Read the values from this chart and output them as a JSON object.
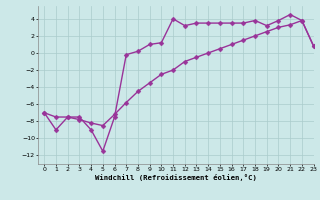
{
  "xlabel": "Windchill (Refroidissement éolien,°C)",
  "line1_x": [
    0,
    1,
    2,
    3,
    4,
    5,
    6,
    7,
    8,
    9,
    10,
    11,
    12,
    13,
    14,
    15,
    16,
    17,
    18,
    19,
    20,
    21,
    22,
    23
  ],
  "line1_y": [
    -7,
    -9,
    -7.5,
    -7.5,
    -9,
    -11.5,
    -7.5,
    -0.2,
    0.2,
    1.0,
    1.2,
    4.0,
    3.2,
    3.5,
    3.5,
    3.5,
    3.5,
    3.5,
    3.8,
    3.2,
    3.8,
    4.5,
    3.8,
    0.8
  ],
  "line2_x": [
    0,
    1,
    2,
    3,
    4,
    5,
    6,
    7,
    8,
    9,
    10,
    11,
    12,
    13,
    14,
    15,
    16,
    17,
    18,
    19,
    20,
    21,
    22,
    23
  ],
  "line2_y": [
    -7,
    -7.5,
    -7.5,
    -7.8,
    -8.2,
    -8.5,
    -7.2,
    -5.8,
    -4.5,
    -3.5,
    -2.5,
    -2.0,
    -1.0,
    -0.5,
    0.0,
    0.5,
    1.0,
    1.5,
    2.0,
    2.5,
    3.0,
    3.3,
    3.8,
    0.8
  ],
  "line_color": "#993399",
  "bg_color": "#cce8e8",
  "grid_color": "#aacccc",
  "ylim": [
    -13,
    5.5
  ],
  "xlim": [
    -0.5,
    23
  ],
  "yticks": [
    -12,
    -10,
    -8,
    -6,
    -4,
    -2,
    0,
    2,
    4
  ],
  "xticks": [
    0,
    1,
    2,
    3,
    4,
    5,
    6,
    7,
    8,
    9,
    10,
    11,
    12,
    13,
    14,
    15,
    16,
    17,
    18,
    19,
    20,
    21,
    22,
    23
  ],
  "marker": "D",
  "markersize": 2.5,
  "linewidth": 1.0
}
